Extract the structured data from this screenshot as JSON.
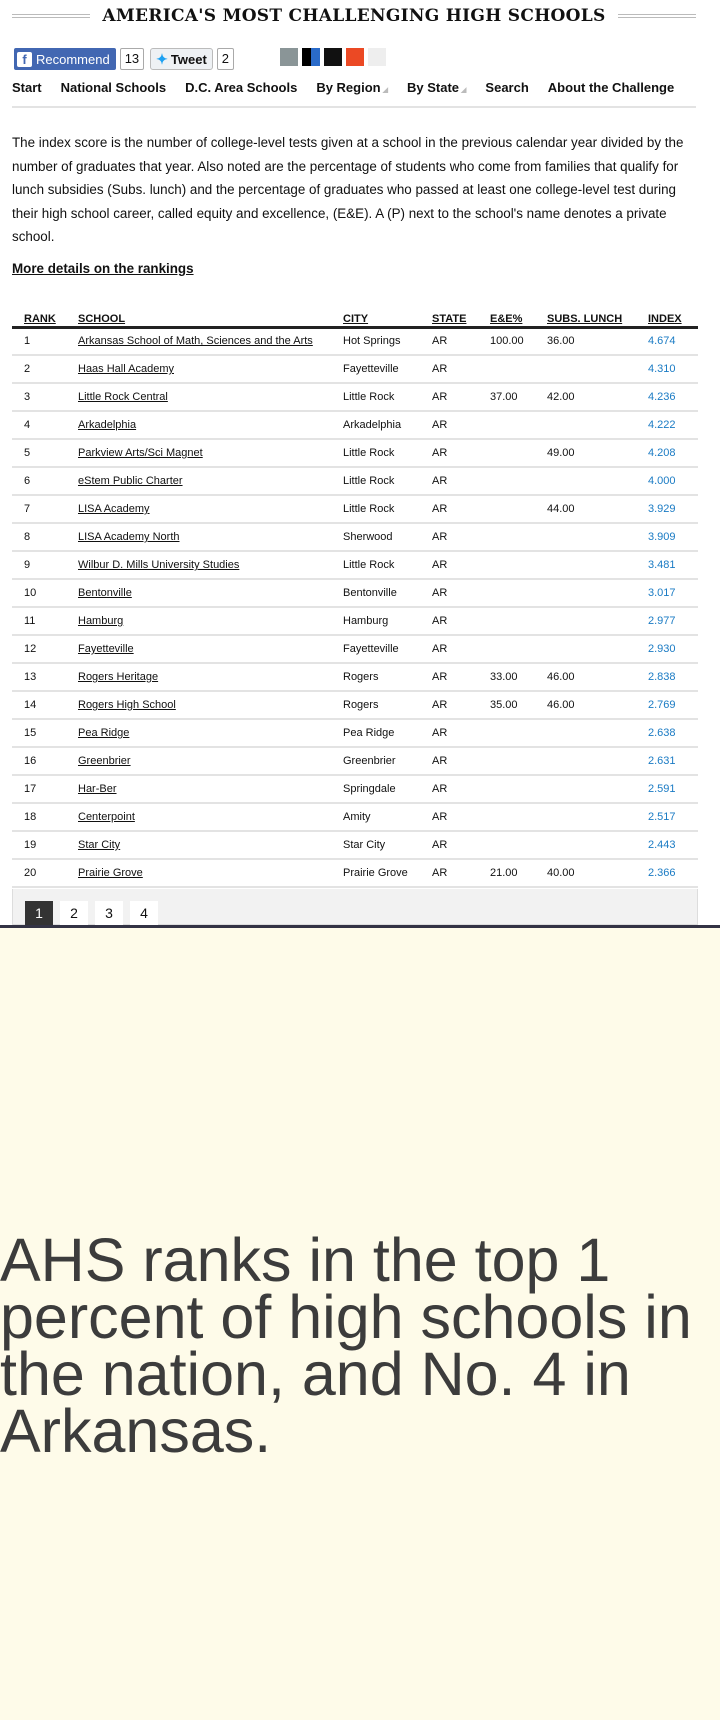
{
  "title": "AMERICA'S MOST CHALLENGING HIGH SCHOOLS",
  "share": {
    "recommend": "Recommend",
    "recommend_count": "13",
    "tweet": "Tweet",
    "tweet_count": "2"
  },
  "nav": [
    "Start",
    "National Schools",
    "D.C. Area Schools",
    "By Region",
    "By State",
    "Search",
    "About the Challenge"
  ],
  "intro": "The index score is the number of college-level tests given at a school in the previous calendar year divided by the number of graduates that year. Also noted are the percentage of students who come from families that qualify for lunch subsidies (Subs. lunch) and the percentage of graduates who passed at least one college-level test during their high school career, called equity and excellence, (E&E). A (P) next to the school's name denotes a private school.",
  "more_link": "More details on the rankings",
  "columns": [
    "RANK",
    "SCHOOL",
    "CITY",
    "STATE",
    "E&E%",
    "SUBS. LUNCH",
    "INDEX"
  ],
  "rows": [
    [
      "1",
      "Arkansas School of Math, Sciences and the Arts",
      "Hot Springs",
      "AR",
      "100.00",
      "36.00",
      "4.674"
    ],
    [
      "2",
      "Haas Hall Academy",
      "Fayetteville",
      "AR",
      "",
      "",
      "4.310"
    ],
    [
      "3",
      "Little Rock Central",
      "Little Rock",
      "AR",
      "37.00",
      "42.00",
      "4.236"
    ],
    [
      "4",
      "Arkadelphia",
      "Arkadelphia",
      "AR",
      "",
      "",
      "4.222"
    ],
    [
      "5",
      "Parkview Arts/Sci Magnet",
      "Little Rock",
      "AR",
      "",
      "49.00",
      "4.208"
    ],
    [
      "6",
      "eStem Public Charter",
      "Little Rock",
      "AR",
      "",
      "",
      "4.000"
    ],
    [
      "7",
      "LISA Academy",
      "Little Rock",
      "AR",
      "",
      "44.00",
      "3.929"
    ],
    [
      "8",
      "LISA Academy North",
      "Sherwood",
      "AR",
      "",
      "",
      "3.909"
    ],
    [
      "9",
      "Wilbur D. Mills University Studies",
      "Little Rock",
      "AR",
      "",
      "",
      "3.481"
    ],
    [
      "10",
      "Bentonville",
      "Bentonville",
      "AR",
      "",
      "",
      "3.017"
    ],
    [
      "11",
      "Hamburg",
      "Hamburg",
      "AR",
      "",
      "",
      "2.977"
    ],
    [
      "12",
      "Fayetteville",
      "Fayetteville",
      "AR",
      "",
      "",
      "2.930"
    ],
    [
      "13",
      "Rogers Heritage",
      "Rogers",
      "AR",
      "33.00",
      "46.00",
      "2.838"
    ],
    [
      "14",
      "Rogers High School",
      "Rogers",
      "AR",
      "35.00",
      "46.00",
      "2.769"
    ],
    [
      "15",
      "Pea Ridge",
      "Pea Ridge",
      "AR",
      "",
      "",
      "2.638"
    ],
    [
      "16",
      "Greenbrier",
      "Greenbrier",
      "AR",
      "",
      "",
      "2.631"
    ],
    [
      "17",
      "Har-Ber",
      "Springdale",
      "AR",
      "",
      "",
      "2.591"
    ],
    [
      "18",
      "Centerpoint",
      "Amity",
      "AR",
      "",
      "",
      "2.517"
    ],
    [
      "19",
      "Star City",
      "Star City",
      "AR",
      "",
      "",
      "2.443"
    ],
    [
      "20",
      "Prairie Grove",
      "Prairie Grove",
      "AR",
      "21.00",
      "40.00",
      "2.366"
    ]
  ],
  "pages": [
    "1",
    "2",
    "3",
    "4"
  ],
  "caption": [
    "AHS ranks in the top 1",
    "percent of high schools in",
    "the nation, and No. 4 in Arkansas."
  ],
  "colors": {
    "index": "#1a7bc4",
    "facebook": "#4267b2",
    "background": "#fefbe9"
  }
}
